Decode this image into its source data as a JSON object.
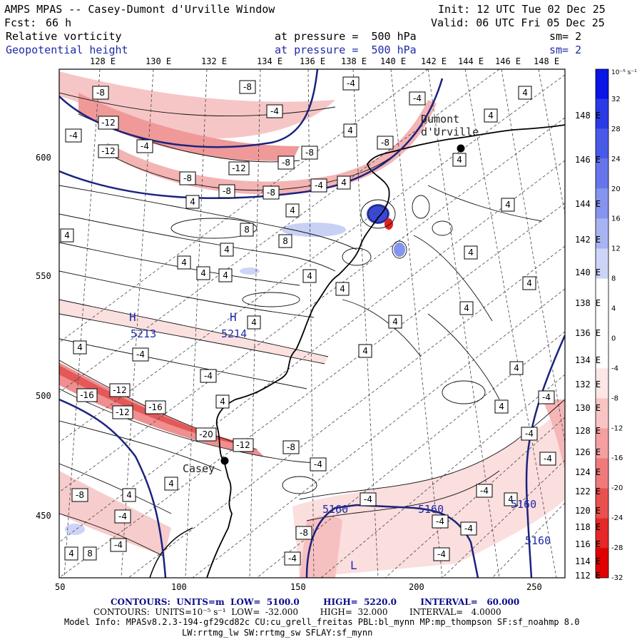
{
  "header": {
    "title": "AMPS MPAS -- Casey-Dumont d'Urville Window",
    "forecast_label": "Fcst:",
    "forecast_value": "66 h",
    "init": "Init: 12 UTC Tue 02 Dec 25",
    "valid": "Valid: 06 UTC Fri 05 Dec 25",
    "field1": "Relative vorticity",
    "field1_pressure": "at pressure =  500 hPa",
    "field1_sm": "sm= 2",
    "field2": "Geopotential height",
    "field2_pressure": "at pressure =  500 hPa",
    "field2_sm": "sm= 2"
  },
  "longitude_top": [
    "128 E",
    "130 E",
    "132 E",
    "134 E",
    "136 E",
    "138 E",
    "140 E",
    "142 E",
    "144 E",
    "146 E",
    "148 E"
  ],
  "latitude_right": [
    "148 E",
    "146 E",
    "144 E",
    "142 E",
    "140 E",
    "138 E",
    "136 E",
    "134 E",
    "132 E",
    "130 E",
    "128 E",
    "126 E",
    "124 E",
    "122 E",
    "120 E",
    "118 E",
    "116 E",
    "114 E",
    "112 E"
  ],
  "x_ticks": [
    "50",
    "100",
    "150",
    "200",
    "250"
  ],
  "y_ticks": [
    "600",
    "550",
    "500",
    "450"
  ],
  "places": {
    "dumont": "Dumont\nd'Urville",
    "casey": "Casey"
  },
  "height_labels": [
    "5160",
    "5160",
    "5160",
    "5160"
  ],
  "highs": [
    {
      "label": "H",
      "value": "5213"
    },
    {
      "label": "H",
      "value": "5214"
    }
  ],
  "low_label": "L",
  "colorbar": {
    "unit": "10⁻⁵ s⁻¹",
    "labels": [
      "32",
      "28",
      "24",
      "20",
      "16",
      "12",
      "8",
      "4",
      "0",
      "-4",
      "-8",
      "-12",
      "-16",
      "-20",
      "-24",
      "-28",
      "-32"
    ],
    "colors": [
      "#0a14e6",
      "#2a3ae6",
      "#4a5ae8",
      "#6676ea",
      "#8594ee",
      "#a8b4f2",
      "#cdd4f8",
      "#ffffff",
      "#ffffff",
      "#ffffff",
      "#fde6e6",
      "#f9c4c4",
      "#f4a0a0",
      "#ef7a7a",
      "#ea5050",
      "#e52828",
      "#e00000"
    ]
  },
  "contour_labels": [
    "-4",
    "-8",
    "-12",
    "-16",
    "-20",
    "4",
    "8"
  ],
  "footer": {
    "line1": "CONTOURS:  UNITS=m  LOW=  5100.0        HIGH=  5220.0        INTERVAL=   60.000",
    "line2": "CONTOURS:  UNITS=10⁻⁵ s⁻¹  LOW=  -32.000        HIGH=  32.000        INTERVAL=   4.0000",
    "line3": "Model Info: MPASv8.2.3-194-gf29cd82c CU:cu_grell_freitas PBL:bl_mynn MP:mp_thompson SF:sf_noahmp 8.0",
    "line4": "LW:rrtmg_lw SW:rrtmg_sw SFLAY:sf_mynn"
  }
}
